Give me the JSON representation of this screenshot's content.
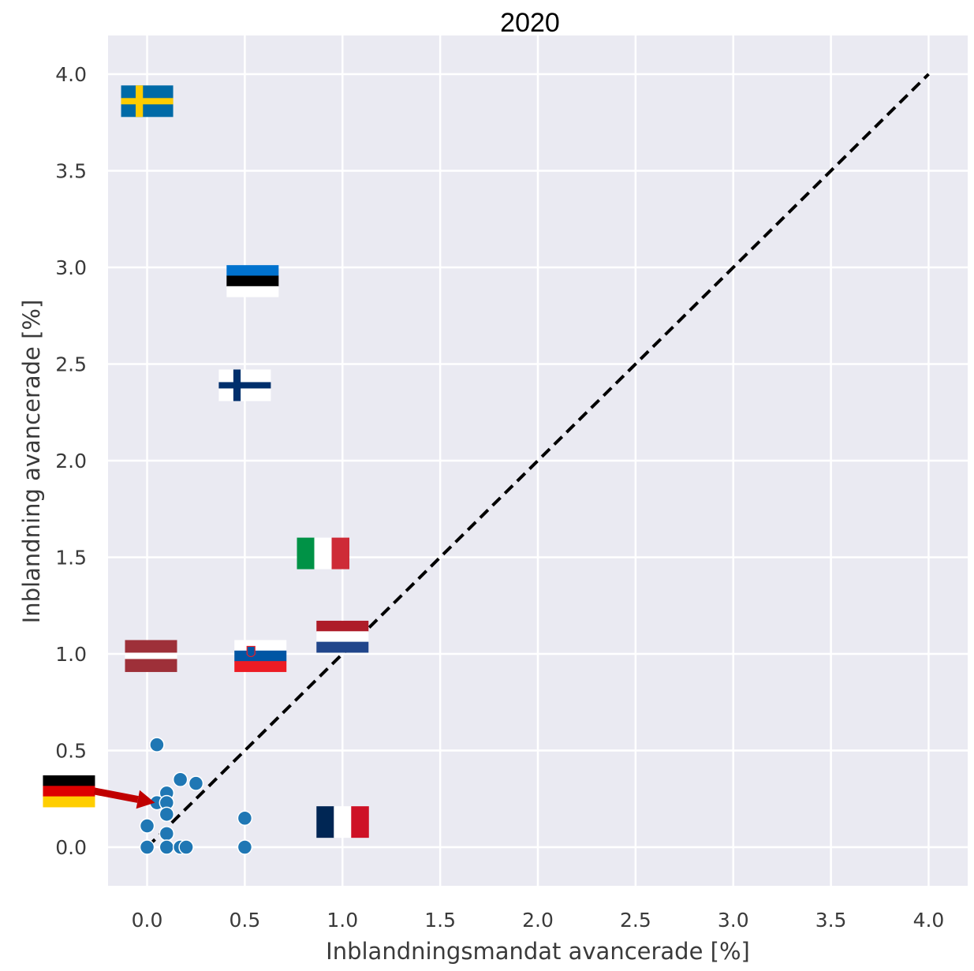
{
  "chart_data": {
    "type": "scatter",
    "title": "2020",
    "xlabel": "Inblandningsmandat avancerade [%]",
    "ylabel": "Inblandning avancerade [%]",
    "xlim": [
      -0.2,
      4.2
    ],
    "ylim": [
      -0.2,
      4.2
    ],
    "x_ticks": [
      "0.0",
      "0.5",
      "1.0",
      "1.5",
      "2.0",
      "2.5",
      "3.0",
      "3.5",
      "4.0"
    ],
    "y_ticks": [
      "0.0",
      "0.5",
      "1.0",
      "1.5",
      "2.0",
      "2.5",
      "3.0",
      "3.5",
      "4.0"
    ],
    "grid": true,
    "background": "#eaeaf2",
    "point_color": "#1f77b4",
    "points": [
      {
        "x": 0.05,
        "y": 0.53
      },
      {
        "x": 0.17,
        "y": 0.35
      },
      {
        "x": 0.25,
        "y": 0.33
      },
      {
        "x": 0.1,
        "y": 0.28
      },
      {
        "x": 0.05,
        "y": 0.23
      },
      {
        "x": 0.1,
        "y": 0.23
      },
      {
        "x": 0.1,
        "y": 0.17
      },
      {
        "x": 0.0,
        "y": 0.11
      },
      {
        "x": 0.1,
        "y": 0.07
      },
      {
        "x": 0.0,
        "y": 0.0
      },
      {
        "x": 0.1,
        "y": 0.0
      },
      {
        "x": 0.17,
        "y": 0.0
      },
      {
        "x": 0.2,
        "y": 0.0
      },
      {
        "x": 0.5,
        "y": 0.15
      },
      {
        "x": 0.5,
        "y": 0.0
      }
    ],
    "reference_line": {
      "from": [
        0,
        0
      ],
      "to": [
        4,
        4
      ],
      "style": "dashed",
      "color": "#000000"
    },
    "flag_markers": [
      {
        "icon": "flag-sweden-icon",
        "x": 0.0,
        "y": 3.86
      },
      {
        "icon": "flag-estonia-icon",
        "x": 0.54,
        "y": 2.93
      },
      {
        "icon": "flag-finland-icon",
        "x": 0.5,
        "y": 2.39
      },
      {
        "icon": "flag-italy-icon",
        "x": 0.9,
        "y": 1.52
      },
      {
        "icon": "flag-latvia-icon",
        "x": 0.02,
        "y": 0.99
      },
      {
        "icon": "flag-slovenia-icon",
        "x": 0.58,
        "y": 0.99
      },
      {
        "icon": "flag-netherlands-icon",
        "x": 1.0,
        "y": 1.09
      },
      {
        "icon": "flag-france-icon",
        "x": 1.0,
        "y": 0.13
      },
      {
        "icon": "flag-germany-icon",
        "x": -0.4,
        "y": 0.29
      }
    ],
    "annotation_arrow": {
      "color": "#c00000",
      "from": [
        -0.27,
        0.29
      ],
      "to": [
        0.04,
        0.23
      ]
    }
  }
}
